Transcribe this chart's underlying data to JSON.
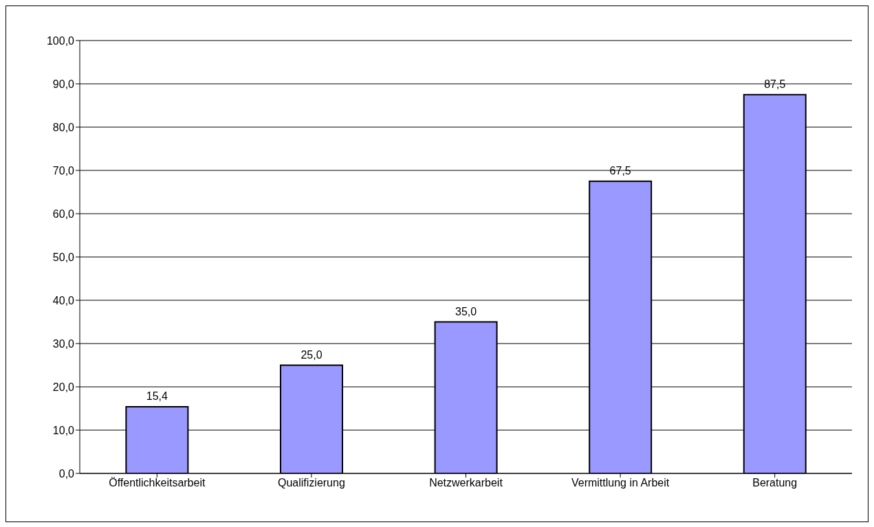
{
  "chart_data": {
    "type": "bar",
    "categories": [
      "Öffentlichkeitsarbeit",
      "Qualifizierung",
      "Netzwerkarbeit",
      "Vermittlung in Arbeit",
      "Beratung"
    ],
    "values": [
      15.4,
      25.0,
      35.0,
      67.5,
      87.5
    ],
    "value_labels": [
      "15,4",
      "25,0",
      "35,0",
      "67,5",
      "87,5"
    ],
    "color": "#9999ff",
    "ylim": [
      0,
      100
    ],
    "yticks": [
      {
        "value": 0,
        "label": "0,0"
      },
      {
        "value": 10,
        "label": "10,0"
      },
      {
        "value": 20,
        "label": "20,0"
      },
      {
        "value": 30,
        "label": "30,0"
      },
      {
        "value": 40,
        "label": "40,0"
      },
      {
        "value": 50,
        "label": "50,0"
      },
      {
        "value": 60,
        "label": "60,0"
      },
      {
        "value": 70,
        "label": "70,0"
      },
      {
        "value": 80,
        "label": "80,0"
      },
      {
        "value": 90,
        "label": "90,0"
      },
      {
        "value": 100,
        "label": "100,0"
      }
    ],
    "grid": "y"
  }
}
